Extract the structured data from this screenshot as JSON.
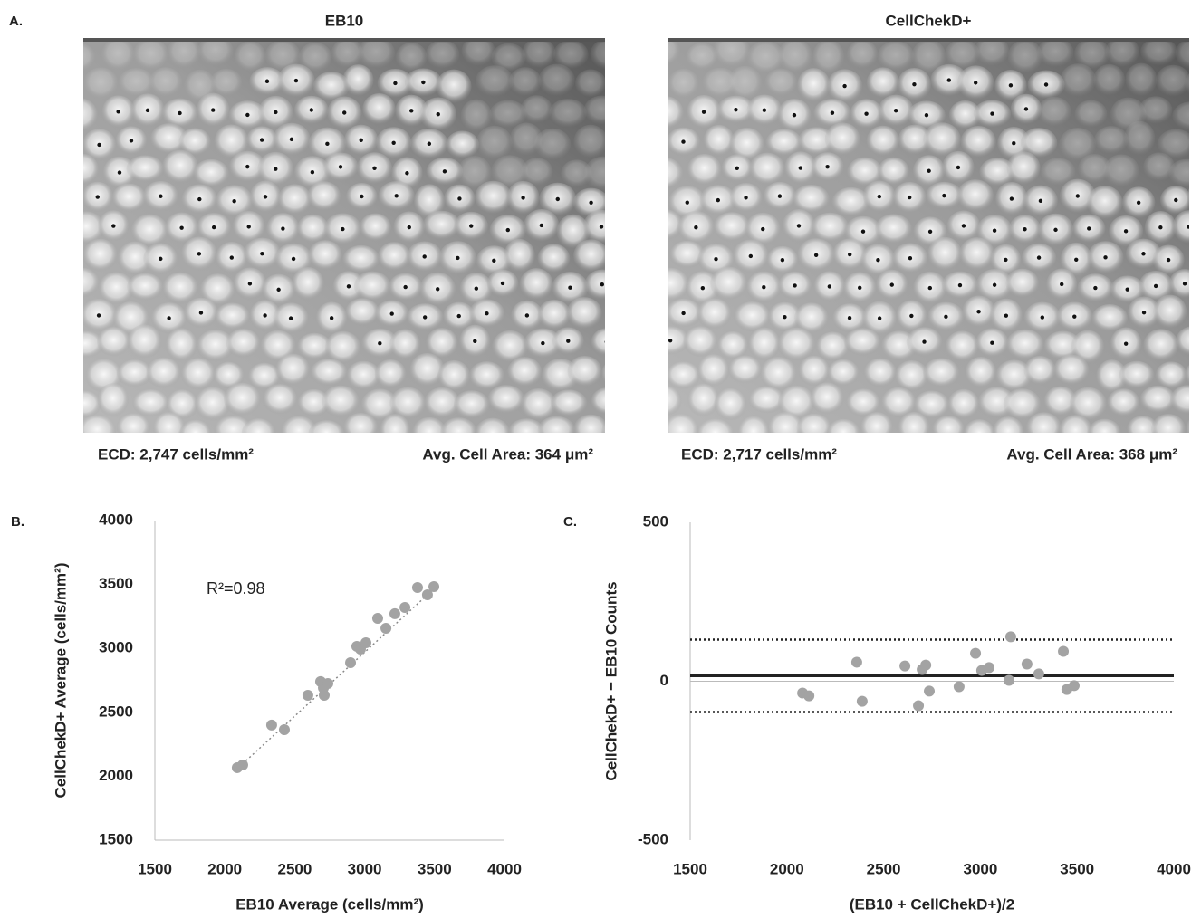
{
  "panel_a": {
    "label": "A.",
    "images": [
      {
        "title": "EB10",
        "ecd": "ECD: 2,747 cells/mm²",
        "area": "Avg. Cell Area: 364 μm²"
      },
      {
        "title": "CellChekD+",
        "ecd": "ECD: 2,717 cells/mm²",
        "area": "Avg. Cell Area: 368 μm²"
      }
    ]
  },
  "chart_data": [
    {
      "type": "scatter",
      "label": "B.",
      "x_label": "EB10 Average (cells/mm²)",
      "y_label": "CellChekD+ Average (cells/mm²)",
      "annotation": "R²=0.98",
      "color": "#a3a3a3",
      "x": [
        2089,
        2128,
        2335,
        2426,
        2594,
        2685,
        2705,
        2711,
        2737,
        2899,
        2944,
        2970,
        3009,
        3093,
        3152,
        3216,
        3288,
        3378,
        3449,
        3495
      ],
      "y": [
        2067,
        2088,
        2400,
        2364,
        2633,
        2740,
        2690,
        2633,
        2725,
        2888,
        3016,
        2994,
        3044,
        3235,
        3157,
        3271,
        3320,
        3476,
        3419,
        3483
      ],
      "trendline": {
        "x": [
          2080,
          3500
        ],
        "y": [
          2050,
          3470
        ]
      },
      "xlim": [
        1500,
        4000
      ],
      "ylim": [
        1500,
        4000
      ],
      "xticks": [
        1500,
        2000,
        2500,
        3000,
        3500,
        4000
      ],
      "yticks": [
        1500,
        2000,
        2500,
        3000,
        3500,
        4000
      ]
    },
    {
      "type": "scatter",
      "label": "C.",
      "x_label": "(EB10 + CellChekD+)/2",
      "y_label": "CellChekD+ − EB10 Counts",
      "color": "#a3a3a3",
      "x": [
        2081,
        2114,
        2361,
        2389,
        2610,
        2680,
        2699,
        2718,
        2736,
        2890,
        2975,
        3007,
        3045,
        3148,
        3157,
        3241,
        3302,
        3429,
        3447,
        3485
      ],
      "y": [
        -37,
        -46,
        60,
        -63,
        48,
        -77,
        37,
        51,
        -31,
        -17,
        88,
        34,
        43,
        3,
        140,
        54,
        23,
        94,
        -26,
        -14
      ],
      "reference_lines": [
        {
          "value": 17,
          "dashed": false
        },
        {
          "value": 131,
          "dashed": true
        },
        {
          "value": -97,
          "dashed": true
        }
      ],
      "xlim": [
        1500,
        4000
      ],
      "ylim": [
        -500,
        500
      ],
      "xticks": [
        1500,
        2000,
        2500,
        3000,
        3500,
        4000
      ],
      "yticks": [
        -500,
        0,
        500
      ]
    }
  ]
}
